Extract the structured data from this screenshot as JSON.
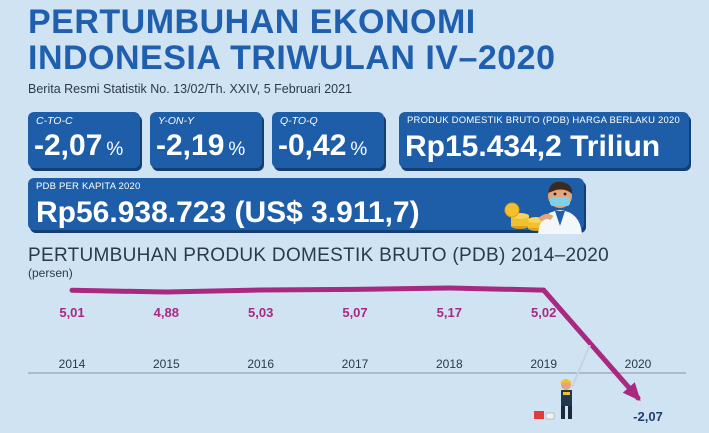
{
  "header": {
    "title_line1": "PERTUMBUHAN EKONOMI",
    "title_line2": "INDONESIA TRIWULAN IV–2020",
    "subtitle": "Berita Resmi Statistik No. 13/02/Th. XXIV, 5 Februari 2021"
  },
  "cards": {
    "c_to_c": {
      "label": "C-TO-C",
      "value": "-2,07",
      "unit": "%"
    },
    "y_on_y": {
      "label": "Y-ON-Y",
      "value": "-2,19",
      "unit": "%"
    },
    "q_to_q": {
      "label": "Q-TO-Q",
      "value": "-0,42",
      "unit": "%"
    },
    "pdb": {
      "label": "PRODUK DOMESTIK BRUTO (PDB) HARGA BERLAKU 2020",
      "value": "Rp15.434,2 Triliun"
    },
    "per_capita": {
      "label": "PDB PER KAPITA 2020",
      "value": "Rp56.938.723 (US$ 3.911,7)"
    }
  },
  "colors": {
    "title": "#1f5fae",
    "card": "#1e5ea8",
    "line": "#a8297f",
    "background": "#cfe3f3"
  },
  "icons": [
    "businessman-icon",
    "coins-icon",
    "worker-icon"
  ],
  "chart_data": {
    "type": "line",
    "title": "PERTUMBUHAN PRODUK DOMESTIK BRUTO (PDB) 2014–2020",
    "ylabel": "(persen)",
    "categories": [
      "2014",
      "2015",
      "2016",
      "2017",
      "2018",
      "2019",
      "2020"
    ],
    "values": [
      5.01,
      4.88,
      5.03,
      5.07,
      5.17,
      5.02,
      -2.07
    ],
    "data_labels": [
      "5,01",
      "4,88",
      "5,03",
      "5,07",
      "5,17",
      "5,02",
      "-2,07"
    ],
    "ylim": [
      -2.5,
      5.5
    ],
    "grid": false
  }
}
